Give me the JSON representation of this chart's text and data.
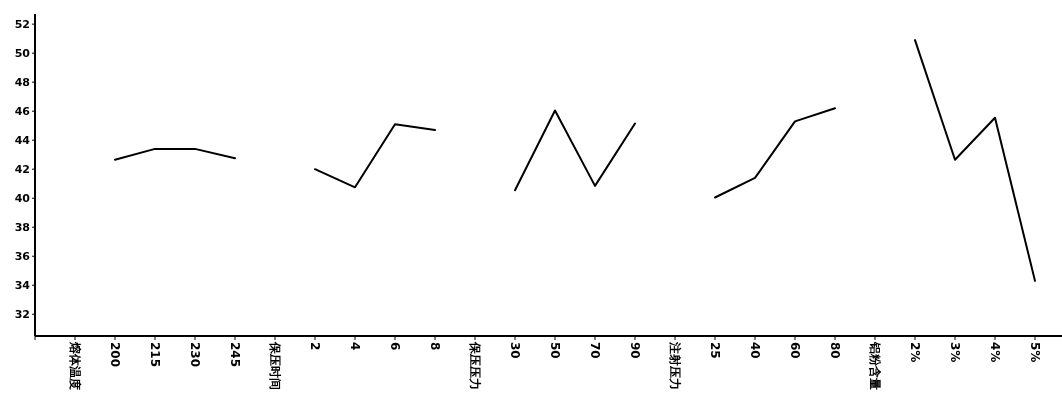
{
  "chart_data": {
    "type": "line",
    "categories": [
      "熔体温度",
      "200",
      "215",
      "230",
      "245",
      "保压时间",
      "2",
      "4",
      "6",
      "8",
      "保压压力",
      "30",
      "50",
      "70",
      "90",
      "注射压力",
      "25",
      "40",
      "60",
      "80",
      "铝粉含量",
      "2%",
      "3%",
      "4%",
      "5%"
    ],
    "values": [
      null,
      42.65,
      43.4,
      43.4,
      42.75,
      null,
      42.0,
      40.75,
      45.1,
      44.7,
      null,
      40.55,
      46.05,
      40.85,
      45.15,
      null,
      40.05,
      41.4,
      45.3,
      46.2,
      null,
      50.9,
      42.65,
      45.55,
      34.3
    ],
    "color": "#000000",
    "ylim": [
      30.5,
      52.7
    ],
    "yticks": [
      32,
      34,
      36,
      38,
      40,
      42,
      44,
      46,
      48,
      50,
      52
    ],
    "grid": false,
    "marker": "none",
    "line_style": "solid"
  }
}
